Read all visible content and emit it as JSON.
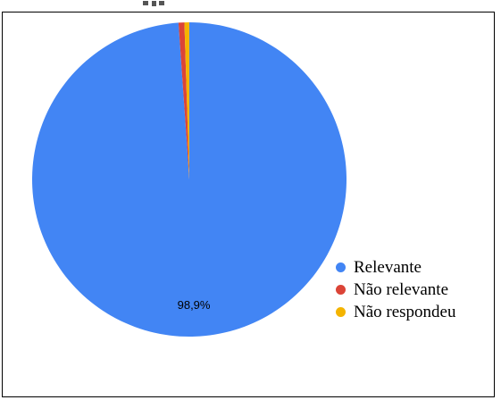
{
  "chart_data": {
    "type": "pie",
    "categories": [
      "Relevante",
      "Não relevante",
      "Não respondeu"
    ],
    "values": [
      98.9,
      0.6,
      0.5
    ],
    "colors": [
      "#4285f4",
      "#db4437",
      "#f4b400"
    ],
    "data_labels": [
      "98,9%",
      "",
      ""
    ],
    "legend_position": "bottom-right",
    "title": ""
  }
}
